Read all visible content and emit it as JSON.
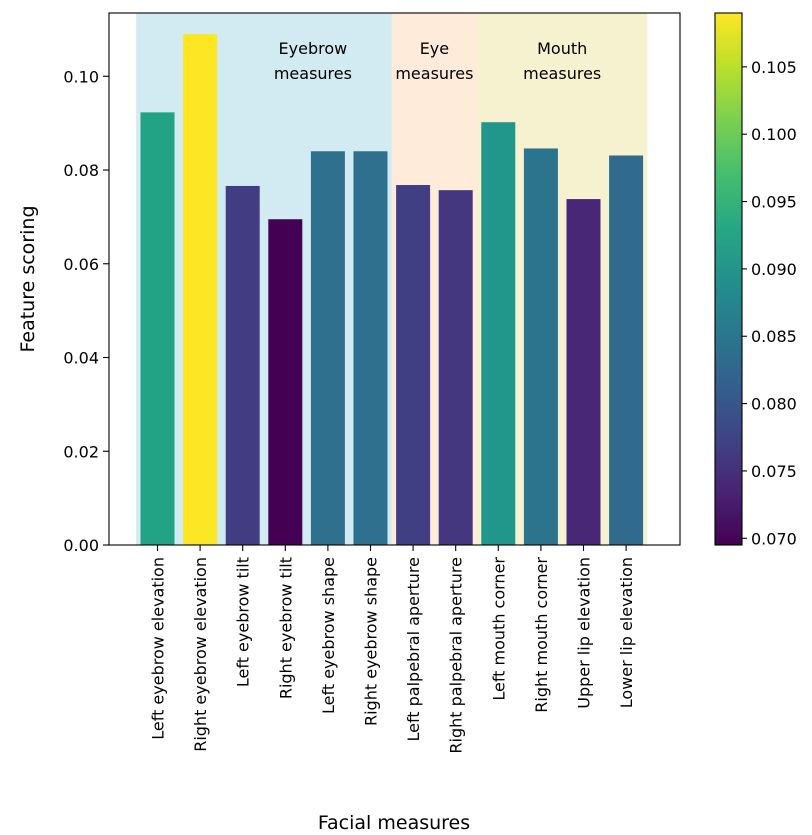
{
  "chart_data": {
    "type": "bar",
    "xlabel": "Facial measures",
    "ylabel": "Feature scoring",
    "categories": [
      "Left eyebrow elevation",
      "Right eyebrow elevation",
      "Left eyebrow tilt",
      "Right eyebrow tilt",
      "Left eyebrow shape",
      "Right eyebrow shape",
      "Left palpebral aperture",
      "Right palpebral aperture",
      "Left mouth corner",
      "Right mouth corner",
      "Upper lip elevation",
      "Lower lip elevation"
    ],
    "values": [
      0.0923,
      0.109,
      0.0766,
      0.0695,
      0.084,
      0.084,
      0.0768,
      0.0757,
      0.0902,
      0.0846,
      0.0738,
      0.0831
    ],
    "ylim": [
      0,
      0.1135
    ],
    "yticks": [
      0.0,
      0.02,
      0.04,
      0.06,
      0.08,
      0.1
    ],
    "ytick_labels": [
      "0.00",
      "0.02",
      "0.04",
      "0.06",
      "0.08",
      "0.10"
    ],
    "grid": false,
    "regions": [
      {
        "label_lines": [
          "Eyebrow",
          "measures"
        ],
        "start_index": 0,
        "end_index": 5,
        "color": "#add8e6"
      },
      {
        "label_lines": [
          "Eye",
          "measures"
        ],
        "start_index": 6,
        "end_index": 7,
        "color": "#ffdab9"
      },
      {
        "label_lines": [
          "Mouth",
          "measures"
        ],
        "start_index": 8,
        "end_index": 11,
        "color": "#eee8aa"
      }
    ],
    "colorbar": {
      "colormap": "viridis",
      "range": [
        0.0695,
        0.109
      ],
      "ticks": [
        0.07,
        0.075,
        0.08,
        0.085,
        0.09,
        0.095,
        0.1,
        0.105
      ],
      "tick_labels": [
        "0.070",
        "0.075",
        "0.080",
        "0.085",
        "0.090",
        "0.095",
        "0.100",
        "0.105"
      ]
    }
  }
}
